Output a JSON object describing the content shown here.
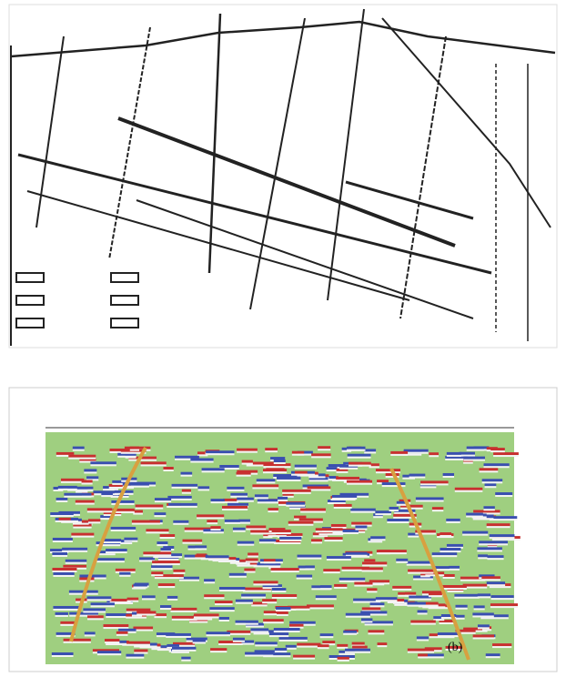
{
  "figure": {
    "panel_b_label": "(b)"
  }
}
